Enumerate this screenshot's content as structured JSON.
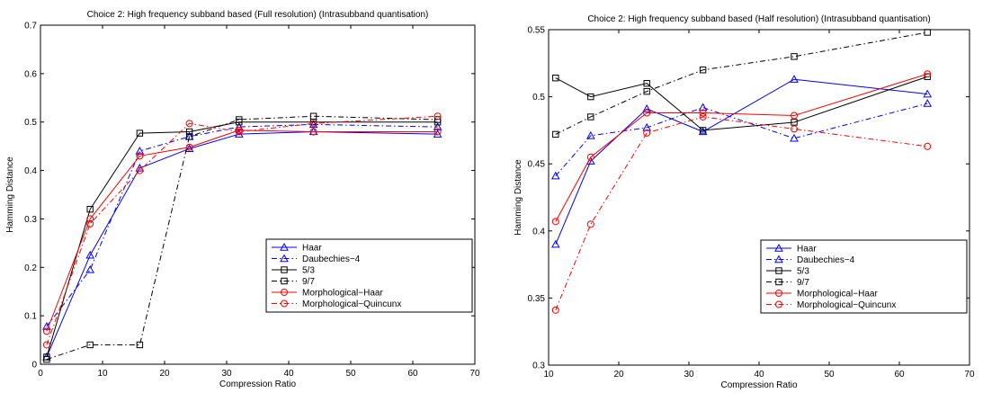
{
  "chart_data": [
    {
      "type": "line",
      "title": "Choice 2: High frequency subband based (Full resolution) (Intrasubband quantisation)",
      "xlabel": "Compression Ratio",
      "ylabel": "Hamming Distance",
      "xlim": [
        0,
        70
      ],
      "ylim": [
        0,
        0.7
      ],
      "xticks": [
        "0",
        "10",
        "20",
        "30",
        "40",
        "50",
        "60",
        "70"
      ],
      "yticks": [
        "0",
        "0.1",
        "0.2",
        "0.3",
        "0.4",
        "0.5",
        "0.6",
        "0.7"
      ],
      "grid": false,
      "legend_position": "lower-right",
      "series": [
        {
          "name": "Haar",
          "color": "#0000ff",
          "dash": "solid",
          "marker": "triangle",
          "x": [
            1,
            8,
            16,
            24,
            32,
            44,
            64
          ],
          "y": [
            0.015,
            0.225,
            0.405,
            0.445,
            0.475,
            0.48,
            0.475
          ]
        },
        {
          "name": "Daubechies−4",
          "color": "#0000ff",
          "dash": "dashdot",
          "marker": "triangle",
          "x": [
            1,
            8,
            16,
            24,
            32,
            44,
            64
          ],
          "y": [
            0.078,
            0.195,
            0.44,
            0.47,
            0.49,
            0.495,
            0.49
          ]
        },
        {
          "name": "5/3",
          "color": "#000000",
          "dash": "solid",
          "marker": "square",
          "x": [
            1,
            8,
            16,
            24,
            32,
            44,
            64
          ],
          "y": [
            0.015,
            0.32,
            0.477,
            0.48,
            0.5,
            0.5,
            0.5
          ]
        },
        {
          "name": "9/7",
          "color": "#000000",
          "dash": "dashdot",
          "marker": "square",
          "x": [
            1,
            8,
            16,
            24,
            32,
            44,
            64
          ],
          "y": [
            0.01,
            0.04,
            0.04,
            0.47,
            0.505,
            0.512,
            0.505
          ]
        },
        {
          "name": "Morphological−Haar",
          "color": "#ff0000",
          "dash": "solid",
          "marker": "circle",
          "x": [
            1,
            8,
            16,
            24,
            32,
            44,
            64
          ],
          "y": [
            0.068,
            0.3,
            0.43,
            0.448,
            0.483,
            0.48,
            0.48
          ]
        },
        {
          "name": "Morphological−Quincunx",
          "color": "#ff0000",
          "dash": "dashdot",
          "marker": "circle",
          "x": [
            1,
            8,
            16,
            24,
            32,
            44,
            64
          ],
          "y": [
            0.04,
            0.29,
            0.4,
            0.497,
            0.48,
            0.497,
            0.512
          ]
        }
      ]
    },
    {
      "type": "line",
      "title": "Choice 2: High frequency subband based (Half resolution) (Intrasubband quantisation)",
      "xlabel": "Compression Ratio",
      "ylabel": "Hamming Distance",
      "xlim": [
        10,
        70
      ],
      "ylim": [
        0.3,
        0.55
      ],
      "xticks": [
        "10",
        "20",
        "30",
        "40",
        "50",
        "60",
        "70"
      ],
      "yticks": [
        "0.3",
        "0.35",
        "0.4",
        "0.45",
        "0.5",
        "0.55"
      ],
      "grid": false,
      "legend_position": "lower-right",
      "series": [
        {
          "name": "Haar",
          "color": "#0000ff",
          "dash": "solid",
          "marker": "triangle",
          "x": [
            11,
            16,
            24,
            32,
            45,
            64
          ],
          "y": [
            0.39,
            0.452,
            0.491,
            0.474,
            0.513,
            0.502
          ]
        },
        {
          "name": "Daubechies−4",
          "color": "#0000ff",
          "dash": "dashdot",
          "marker": "triangle",
          "x": [
            11,
            16,
            24,
            32,
            45,
            64
          ],
          "y": [
            0.441,
            0.471,
            0.477,
            0.492,
            0.469,
            0.495
          ]
        },
        {
          "name": "5/3",
          "color": "#000000",
          "dash": "solid",
          "marker": "square",
          "x": [
            11,
            16,
            24,
            32,
            45,
            64
          ],
          "y": [
            0.514,
            0.5,
            0.51,
            0.475,
            0.481,
            0.515
          ]
        },
        {
          "name": "9/7",
          "color": "#000000",
          "dash": "dashdot",
          "marker": "square",
          "x": [
            11,
            16,
            24,
            32,
            45,
            64
          ],
          "y": [
            0.472,
            0.485,
            0.504,
            0.52,
            0.53,
            0.548
          ]
        },
        {
          "name": "Morphological−Haar",
          "color": "#ff0000",
          "dash": "solid",
          "marker": "circle",
          "x": [
            11,
            16,
            24,
            32,
            45,
            64
          ],
          "y": [
            0.407,
            0.455,
            0.488,
            0.488,
            0.486,
            0.517
          ]
        },
        {
          "name": "Morphological−Quincunx",
          "color": "#ff0000",
          "dash": "dashdot",
          "marker": "circle",
          "x": [
            11,
            16,
            24,
            32,
            45,
            64
          ],
          "y": [
            0.341,
            0.405,
            0.473,
            0.485,
            0.476,
            0.463
          ]
        }
      ]
    }
  ]
}
